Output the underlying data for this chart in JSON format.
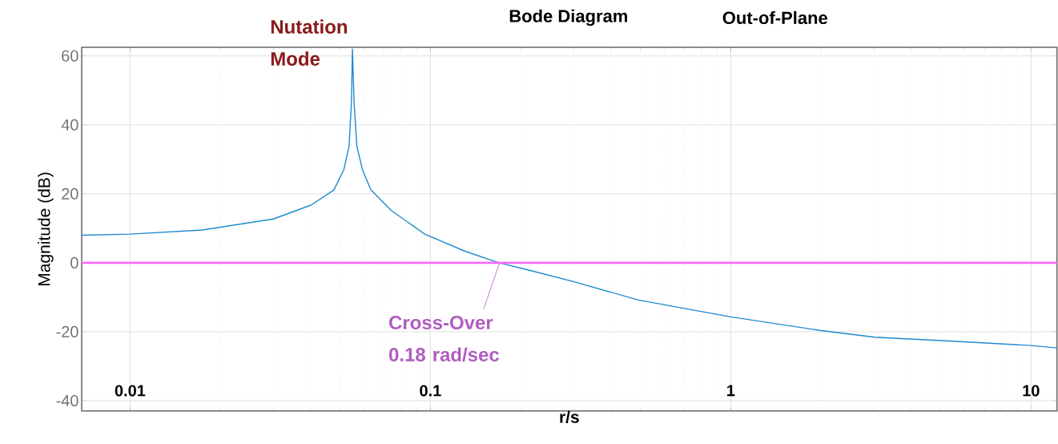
{
  "chart_data": {
    "type": "line",
    "title": "Bode Diagram",
    "subtitle": "Out-of-Plane",
    "xlabel": "r/s",
    "ylabel": "Magnitude (dB)",
    "log": "x",
    "x": [
      0.0069,
      0.01,
      0.0174,
      0.03,
      0.04,
      0.0477,
      0.0515,
      0.0536,
      0.0546,
      0.055,
      0.0557,
      0.0569,
      0.0594,
      0.0634,
      0.074,
      0.0958,
      0.13,
      0.169,
      0.21,
      0.298,
      0.493,
      1,
      1.98,
      3.02,
      5.35,
      10,
      12.2
    ],
    "series": [
      {
        "color": "#1f8ad0",
        "values": [
          8.0,
          8.3,
          9.5,
          12.7,
          16.7,
          21.1,
          27.0,
          33.8,
          46.6,
          62,
          46.6,
          33.8,
          27.0,
          21.1,
          15.2,
          8.3,
          3.4,
          0,
          -2.0,
          -5.4,
          -10.8,
          -15.7,
          -19.6,
          -21.6,
          -22.7,
          -24.0,
          -24.7
        ]
      }
    ],
    "xlim": [
      0.0069,
      12.2
    ],
    "ylim": [
      -43,
      62.5
    ],
    "xticks": [
      0.01,
      0.1,
      1,
      10
    ],
    "yticks": [
      -40,
      -20,
      0,
      20,
      40,
      60
    ],
    "grid": true,
    "ref_lines": [
      {
        "axis": "y",
        "value": 0,
        "color": "#ff66ff"
      }
    ],
    "annotations": [
      {
        "text": "Nutation Mode",
        "x": 0.055,
        "y": 62
      },
      {
        "text": "Cross-Over 0.18 rad/sec",
        "x": 0.17,
        "y": 0
      }
    ]
  }
}
